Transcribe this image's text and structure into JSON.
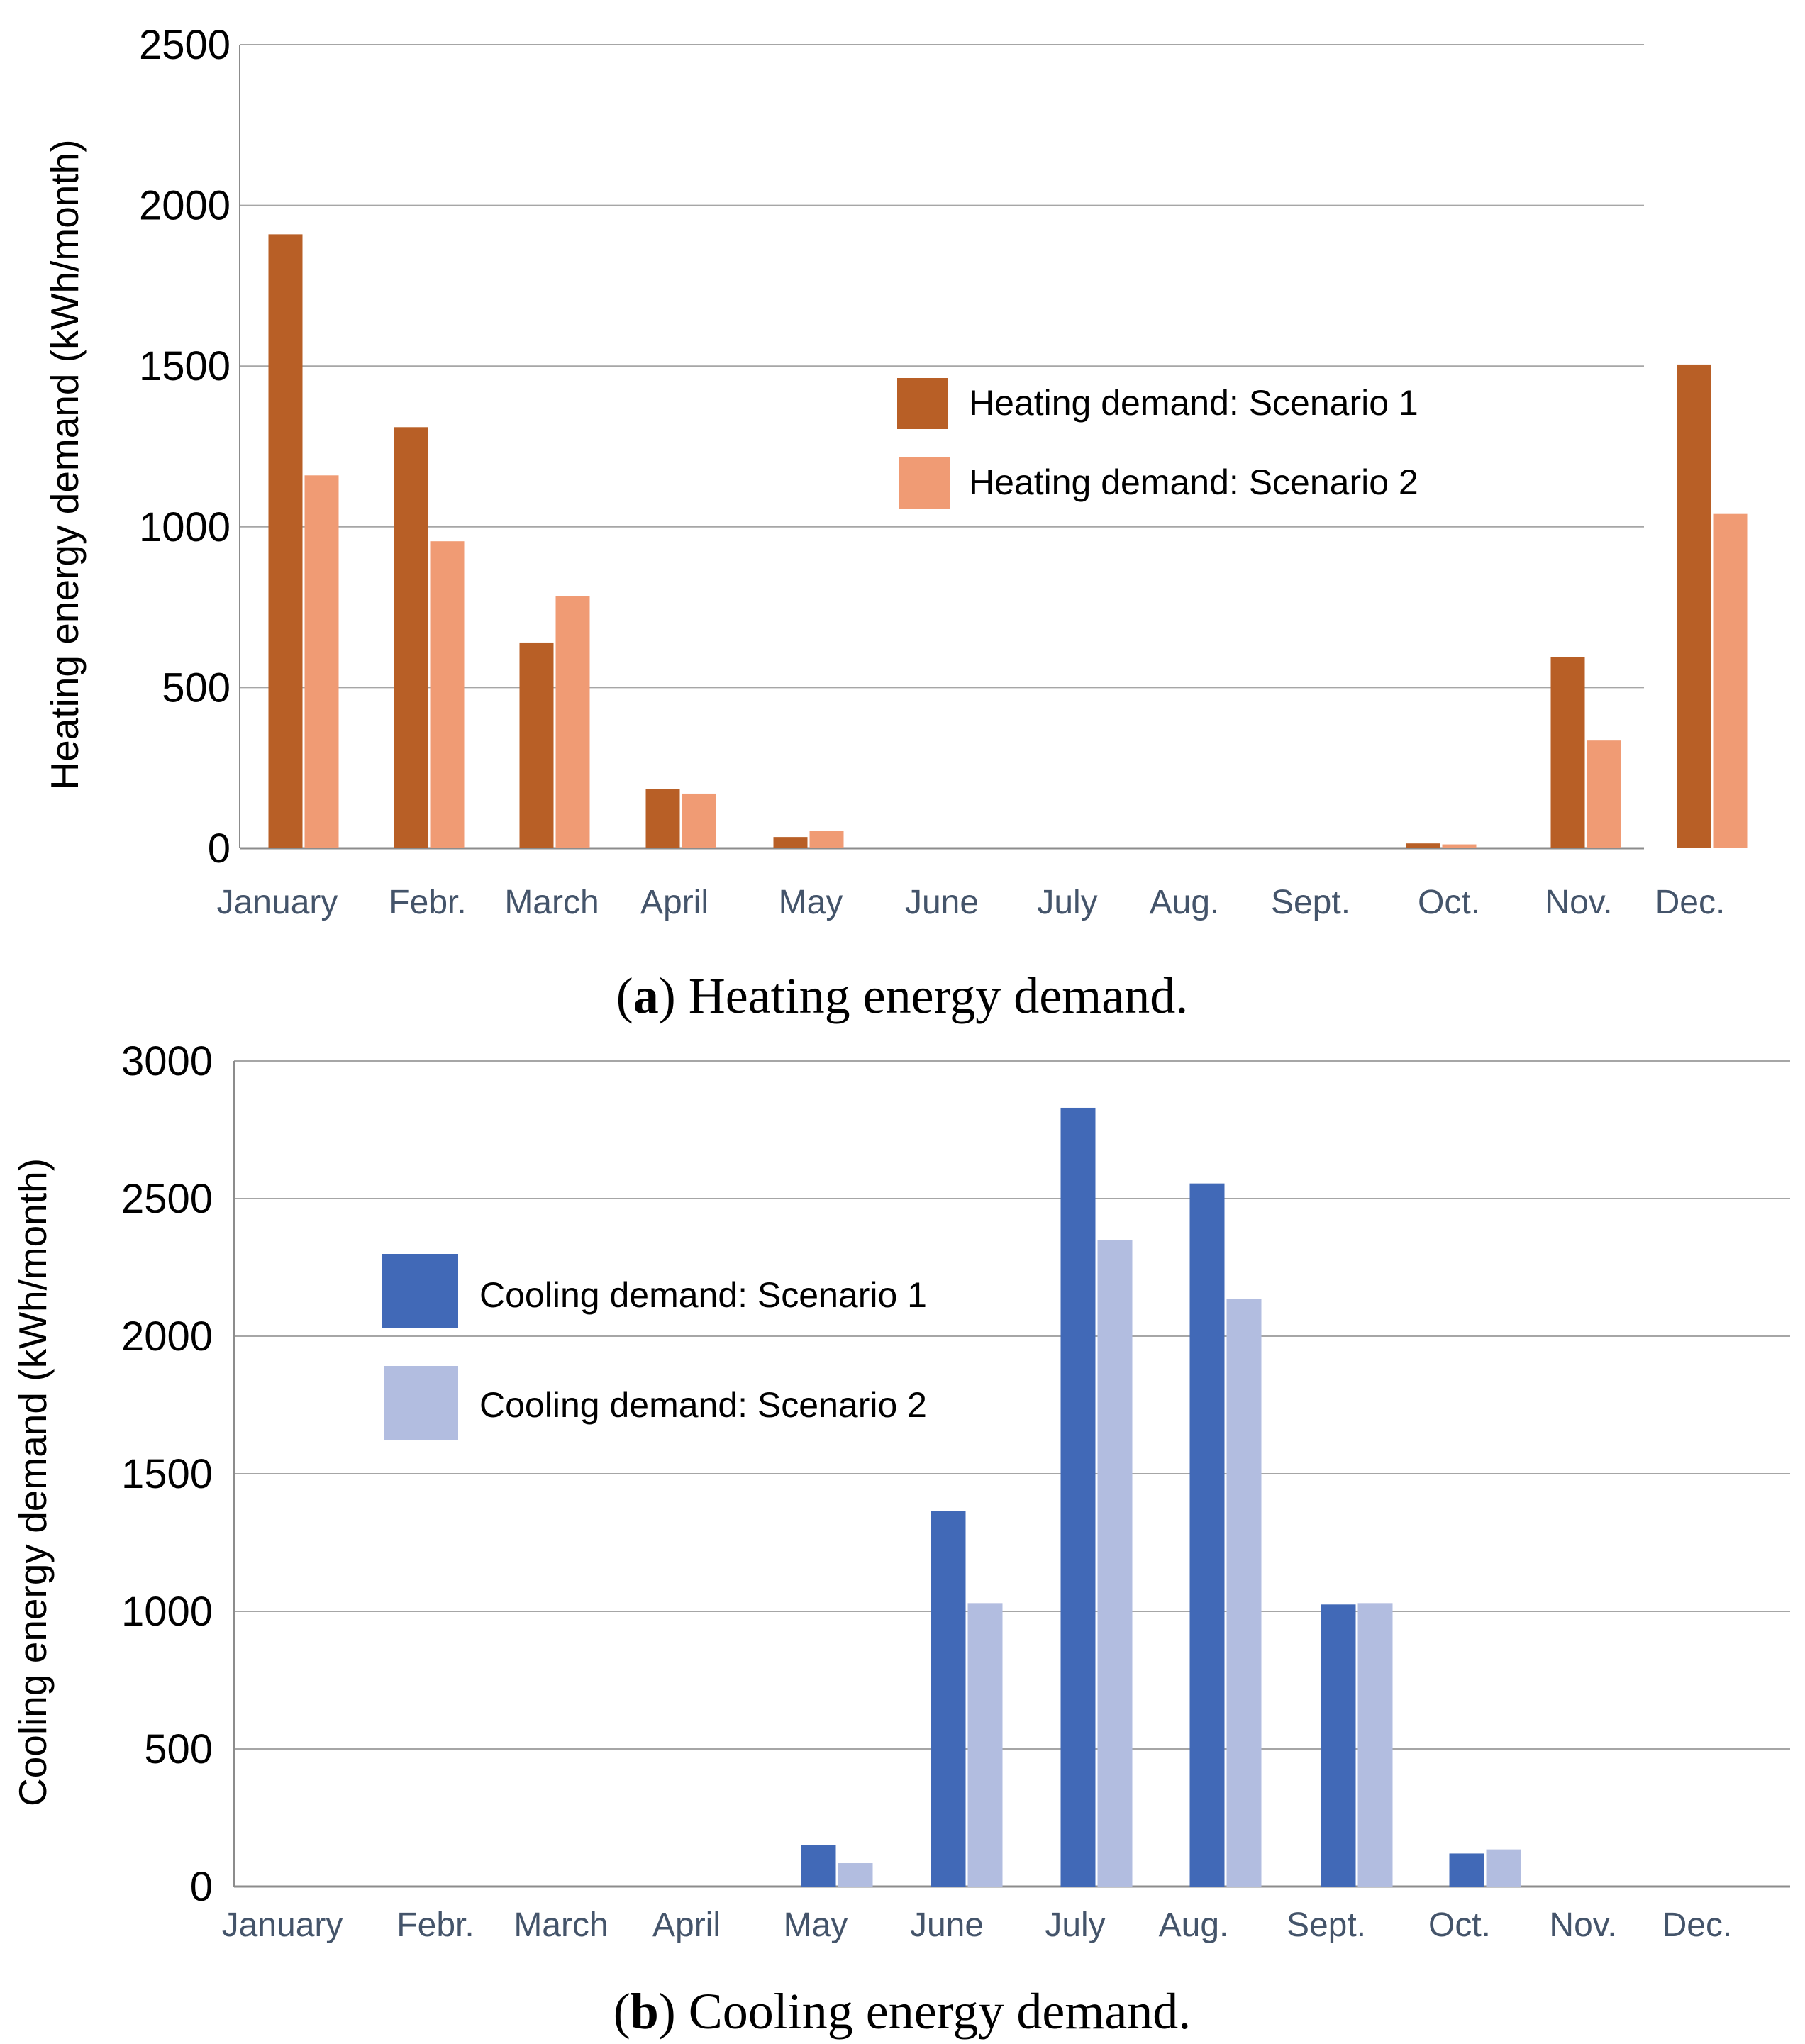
{
  "chart_data": [
    {
      "type": "bar",
      "ylabel": "Heating energy demand (kWh/month)",
      "ylim": [
        0,
        2500
      ],
      "yticks": [
        "0",
        "500",
        "1000",
        "1500",
        "2000",
        "2500"
      ],
      "categories": [
        "January",
        "Febr.",
        "March",
        "April",
        "May",
        "June",
        "July",
        "Aug.",
        "Sept.",
        "Oct.",
        "Nov.",
        "Dec."
      ],
      "series": [
        {
          "name": "Heating demand: Scenario 1",
          "color": "#b85f26",
          "values": [
            1910,
            1310,
            640,
            185,
            35,
            0,
            0,
            0,
            0,
            15,
            595,
            1505
          ]
        },
        {
          "name": "Heating demand: Scenario 2",
          "color": "#f09b74",
          "values": [
            1160,
            955,
            785,
            170,
            55,
            0,
            0,
            0,
            0,
            12,
            335,
            1040
          ]
        }
      ],
      "legend_position": "right",
      "caption_tag": "a",
      "caption_text": " Heating energy demand."
    },
    {
      "type": "bar",
      "ylabel": "Cooling energy demand (kWh/month)",
      "ylim": [
        0,
        3000
      ],
      "yticks": [
        "0",
        "500",
        "1000",
        "1500",
        "2000",
        "2500",
        "3000"
      ],
      "categories": [
        "January",
        "Febr.",
        "March",
        "April",
        "May",
        "June",
        "July",
        "Aug.",
        "Sept.",
        "Oct.",
        "Nov.",
        "Dec."
      ],
      "series": [
        {
          "name": "Cooling demand: Scenario 1",
          "color": "#4169b7",
          "values": [
            0,
            0,
            0,
            0,
            150,
            1365,
            2830,
            2555,
            1025,
            120,
            0,
            0
          ]
        },
        {
          "name": "Cooling demand: Scenario 2",
          "color": "#b2bde0",
          "values": [
            0,
            0,
            0,
            0,
            85,
            1030,
            2350,
            2135,
            1030,
            135,
            0,
            0
          ]
        }
      ],
      "legend_position": "left",
      "caption_tag": "b",
      "caption_text": " Cooling energy demand."
    }
  ]
}
